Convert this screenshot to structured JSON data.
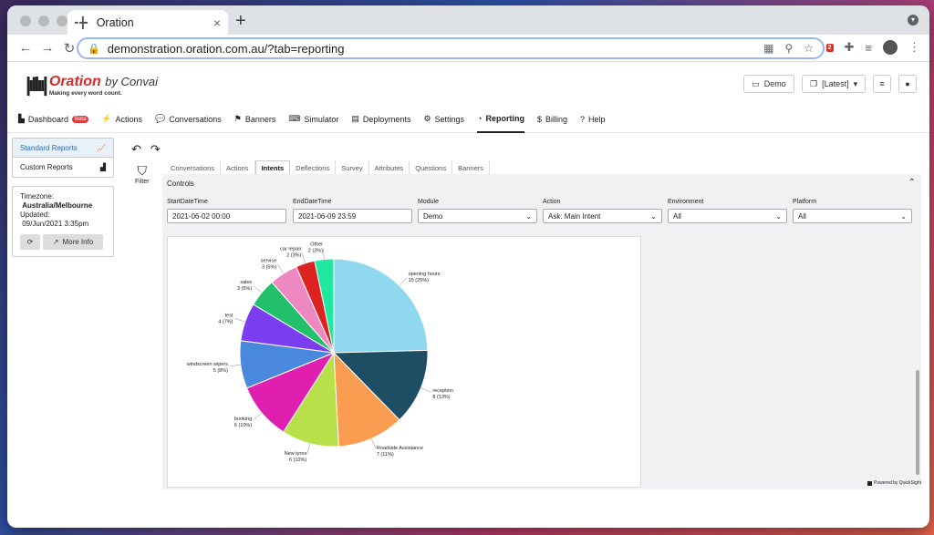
{
  "browser": {
    "tab_title": "Oration",
    "tab_close": "×",
    "new_tab": "+",
    "url": "demonstration.oration.com.au/?tab=reporting",
    "ext_badge": "2"
  },
  "app": {
    "logo_name": "Oration",
    "logo_by": "by Convai",
    "logo_tagline": "Making every word count.",
    "header_buttons": {
      "demo": "Demo",
      "latest": "[Latest]"
    }
  },
  "nav": {
    "items": [
      {
        "label": "Dashboard",
        "icon": "dashboard-icon",
        "glyph": "▙"
      },
      {
        "label": "Actions",
        "icon": "plug-icon",
        "glyph": "⚡"
      },
      {
        "label": "Conversations",
        "icon": "chat-icon",
        "glyph": "💬"
      },
      {
        "label": "Banners",
        "icon": "flag-icon",
        "glyph": "⚑"
      },
      {
        "label": "Simulator",
        "icon": "keyboard-icon",
        "glyph": "⌨"
      },
      {
        "label": "Deployments",
        "icon": "server-icon",
        "glyph": "▤"
      },
      {
        "label": "Settings",
        "icon": "gear-icon",
        "glyph": "⚙"
      },
      {
        "label": "Reporting",
        "icon": "pie-icon",
        "glyph": "◔"
      },
      {
        "label": "Billing",
        "icon": "dollar-icon",
        "glyph": "$"
      },
      {
        "label": "Help",
        "icon": "question-icon",
        "glyph": "?"
      }
    ],
    "beta_badge": "Beta"
  },
  "sidebar": {
    "standard_reports": "Standard Reports",
    "custom_reports": "Custom Reports",
    "timezone_label": "Timezone:",
    "timezone_value": "Australia/Melbourne",
    "updated_label": "Updated:",
    "updated_value": "09/Jun/2021 3:35pm",
    "more_info": "More Info"
  },
  "toolbar": {
    "filter_label": "Filter"
  },
  "subtabs": [
    "Conversations",
    "Actions",
    "Intents",
    "Deflections",
    "Survey",
    "Attributes",
    "Questions",
    "Banners"
  ],
  "controls": {
    "title": "Controls",
    "start_label": "StartDateTime",
    "start_value": "2021-06-02 00:00",
    "end_label": "EndDateTime",
    "end_value": "2021-06-09 23:59",
    "module_label": "Module",
    "module_value": "Demo",
    "action_label": "Action",
    "action_value": "Ask: Main Intent",
    "environment_label": "Environment",
    "environment_value": "All",
    "platform_label": "Platform",
    "platform_value": "All"
  },
  "footer": {
    "powered": "Powered by QuickSight"
  },
  "chart_data": {
    "type": "pie",
    "slices": [
      {
        "label": "opening hours",
        "value": 15,
        "pct": "25%",
        "color": "#8fd8ee"
      },
      {
        "label": "reception",
        "value": 8,
        "pct": "13%",
        "color": "#1d4e63"
      },
      {
        "label": "Roadside Assistance",
        "value": 7,
        "pct": "11%",
        "color": "#fa9d50"
      },
      {
        "label": "New tyres",
        "value": 6,
        "pct": "10%",
        "color": "#b7e04a"
      },
      {
        "label": "booking",
        "value": 6,
        "pct": "10%",
        "color": "#e01fb0"
      },
      {
        "label": "windscreen wipers",
        "value": 5,
        "pct": "8%",
        "color": "#4a88de"
      },
      {
        "label": "test",
        "value": 4,
        "pct": "7%",
        "color": "#7b3df0"
      },
      {
        "label": "sales",
        "value": 3,
        "pct": "5%",
        "color": "#22c06a"
      },
      {
        "label": "service",
        "value": 3,
        "pct": "5%",
        "color": "#ee88c0"
      },
      {
        "label": "car repair",
        "value": 2,
        "pct": "3%",
        "color": "#dd2222"
      },
      {
        "label": "Other",
        "value": 2,
        "pct": "3%",
        "color": "#20e8a0"
      }
    ]
  }
}
